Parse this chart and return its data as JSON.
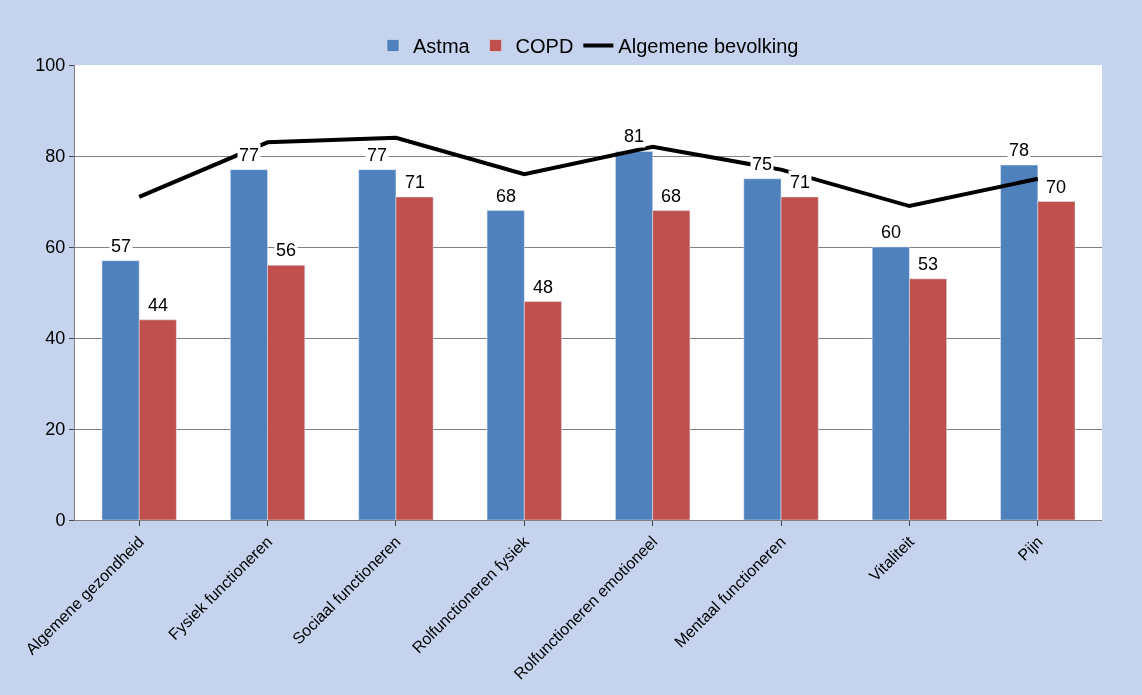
{
  "chart_data": {
    "type": "bar",
    "categories": [
      "Algemene gezondheid",
      "Fysiek functioneren",
      "Sociaal functioneren",
      "Rolfunctioneren fysiek",
      "Rolfunctioneren emotioneel",
      "Mentaal functioneren",
      "Vitaliteit",
      "Pijn"
    ],
    "series": [
      {
        "name": "Astma",
        "color": "#4f81bd",
        "values": [
          57,
          77,
          77,
          68,
          81,
          75,
          60,
          78
        ],
        "value_labels": [
          "57",
          "77",
          "77",
          "68",
          "81",
          "75",
          "60",
          "78"
        ]
      },
      {
        "name": "COPD",
        "color": "#c0504d",
        "values": [
          44,
          56,
          71,
          48,
          68,
          71,
          53,
          70
        ],
        "value_labels": [
          "44",
          "56",
          "71",
          "48",
          "68",
          "71",
          "53",
          "70"
        ]
      },
      {
        "name": "Algemene bevolking",
        "type": "line",
        "color": "#000000",
        "values": [
          71,
          83,
          84,
          76,
          82,
          77,
          69,
          75
        ]
      }
    ],
    "ylim": [
      0,
      100
    ],
    "yticks": [
      0,
      20,
      40,
      60,
      80,
      100
    ],
    "grid": "y",
    "legend": "top",
    "marker": "none",
    "line_style": "solid"
  }
}
